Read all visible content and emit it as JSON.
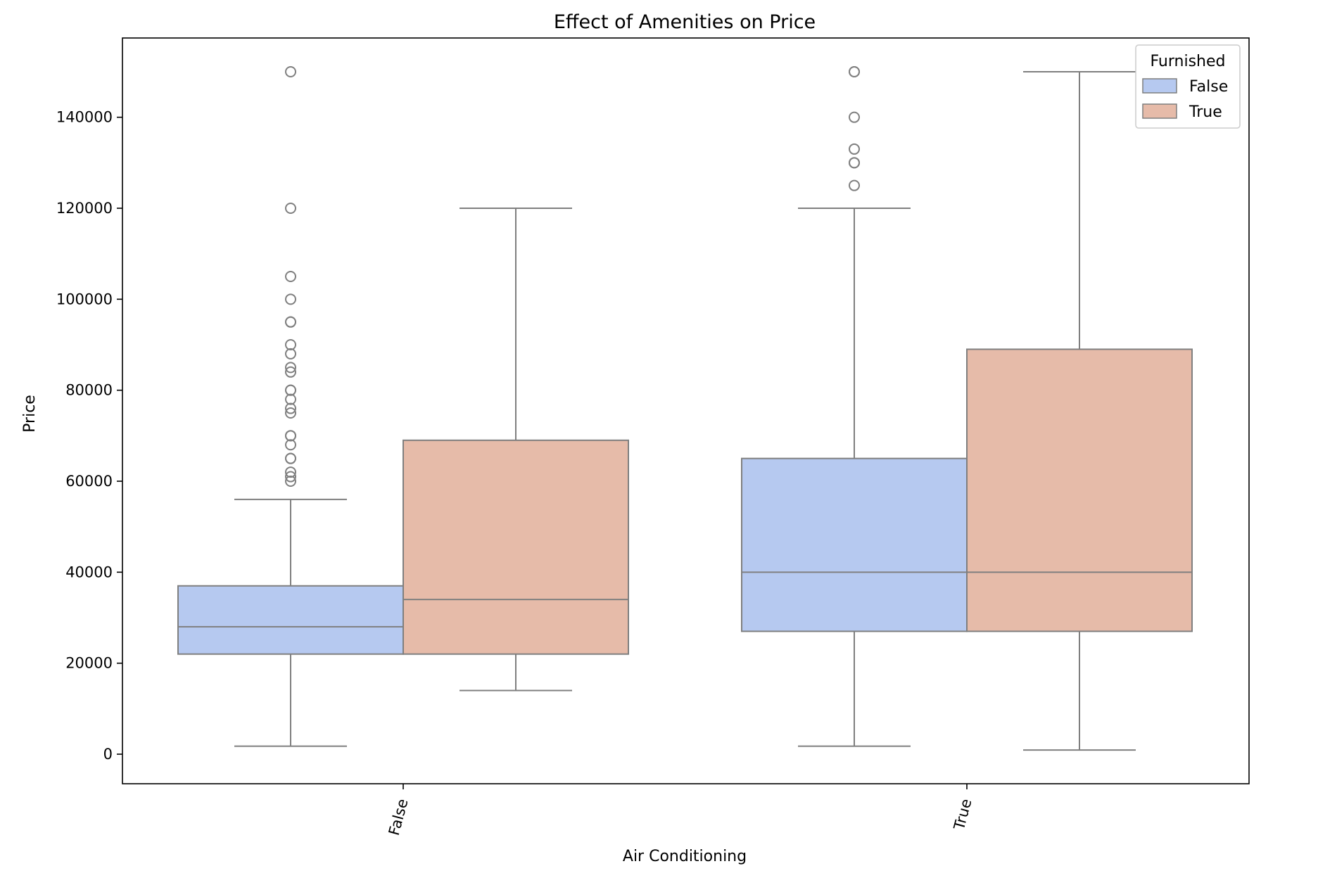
{
  "chart_data": {
    "type": "box",
    "title": "Effect of Amenities on Price",
    "xlabel": "Air Conditioning",
    "ylabel": "Price",
    "categories": [
      "False",
      "True"
    ],
    "ylim": [
      -6500,
      158000
    ],
    "yticks": [
      0,
      20000,
      40000,
      60000,
      80000,
      100000,
      120000,
      140000
    ],
    "ytick_labels": [
      "0",
      "20000",
      "40000",
      "60000",
      "80000",
      "100000",
      "120000",
      "140000"
    ],
    "legend": {
      "title": "Furnished",
      "position": "top-right",
      "entries": [
        "False",
        "True"
      ]
    },
    "grid": false,
    "series": [
      {
        "name": "False",
        "color": "#b6c9f0",
        "boxes": [
          {
            "category": "False",
            "whisker_low": 1750,
            "q1": 22000,
            "median": 28000,
            "q3": 37000,
            "whisker_high": 56000,
            "outliers": [
              60000,
              61000,
              62000,
              65000,
              65000,
              68000,
              70000,
              70000,
              75000,
              76000,
              78000,
              80000,
              80000,
              84000,
              85000,
              88000,
              90000,
              95000,
              95000,
              100000,
              105000,
              120000,
              150000
            ]
          },
          {
            "category": "True",
            "whisker_low": 1750,
            "q1": 27000,
            "median": 40000,
            "q3": 65000,
            "whisker_high": 120000,
            "outliers": [
              125000,
              130000,
              130000,
              133000,
              140000,
              150000,
              150000
            ]
          }
        ]
      },
      {
        "name": "True",
        "color": "#e6bba9",
        "boxes": [
          {
            "category": "False",
            "whisker_low": 14000,
            "q1": 22000,
            "median": 34000,
            "q3": 69000,
            "whisker_high": 120000,
            "outliers": []
          },
          {
            "category": "True",
            "whisker_low": 900,
            "q1": 27000,
            "median": 40000,
            "q3": 89000,
            "whisker_high": 150000,
            "outliers": []
          }
        ]
      }
    ]
  }
}
